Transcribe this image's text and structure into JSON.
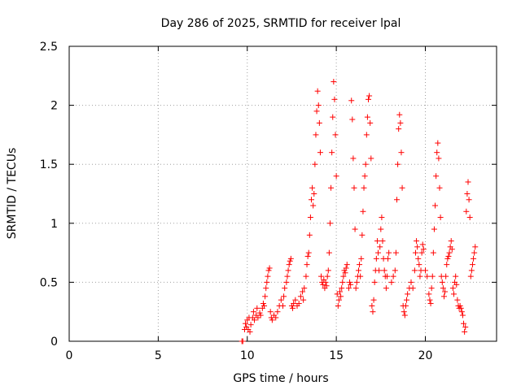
{
  "chart_data": {
    "type": "scatter",
    "title": "Day 286 of 2025, SRMTID for receiver lpal",
    "xlabel": "GPS time / hours",
    "ylabel": "SRMTID / TECUs",
    "xlim": [
      0,
      24
    ],
    "ylim": [
      0,
      2.5
    ],
    "xticks": [
      0,
      5,
      10,
      15,
      20
    ],
    "yticks": [
      0,
      0.5,
      1,
      1.5,
      2,
      2.5
    ],
    "xtick_labels": [
      "0",
      "5",
      "10",
      "15",
      "20"
    ],
    "ytick_labels": [
      "0",
      "0.5",
      "1",
      "1.5",
      "2",
      "2.5"
    ],
    "grid": true,
    "marker": "+",
    "color": "#ff0000",
    "series": [
      {
        "name": "SRMTID",
        "points": [
          [
            9.7,
            0.0
          ],
          [
            9.75,
            0.0
          ],
          [
            9.85,
            0.1
          ],
          [
            9.9,
            0.15
          ],
          [
            9.95,
            0.12
          ],
          [
            10.0,
            0.18
          ],
          [
            10.05,
            0.1
          ],
          [
            10.1,
            0.2
          ],
          [
            10.15,
            0.08
          ],
          [
            10.2,
            0.14
          ],
          [
            10.3,
            0.2
          ],
          [
            10.35,
            0.25
          ],
          [
            10.4,
            0.18
          ],
          [
            10.5,
            0.22
          ],
          [
            10.55,
            0.28
          ],
          [
            10.6,
            0.2
          ],
          [
            10.7,
            0.24
          ],
          [
            10.75,
            0.22
          ],
          [
            10.85,
            0.28
          ],
          [
            10.9,
            0.32
          ],
          [
            10.95,
            0.3
          ],
          [
            11.0,
            0.38
          ],
          [
            11.05,
            0.45
          ],
          [
            11.1,
            0.5
          ],
          [
            11.15,
            0.55
          ],
          [
            11.2,
            0.6
          ],
          [
            11.25,
            0.62
          ],
          [
            11.3,
            0.25
          ],
          [
            11.35,
            0.2
          ],
          [
            11.4,
            0.18
          ],
          [
            11.5,
            0.22
          ],
          [
            11.6,
            0.2
          ],
          [
            11.7,
            0.25
          ],
          [
            11.8,
            0.3
          ],
          [
            11.9,
            0.35
          ],
          [
            12.0,
            0.3
          ],
          [
            12.05,
            0.38
          ],
          [
            12.1,
            0.45
          ],
          [
            12.2,
            0.5
          ],
          [
            12.25,
            0.55
          ],
          [
            12.3,
            0.6
          ],
          [
            12.35,
            0.65
          ],
          [
            12.4,
            0.68
          ],
          [
            12.45,
            0.7
          ],
          [
            12.5,
            0.3
          ],
          [
            12.55,
            0.28
          ],
          [
            12.6,
            0.32
          ],
          [
            12.7,
            0.35
          ],
          [
            12.8,
            0.3
          ],
          [
            12.9,
            0.32
          ],
          [
            13.0,
            0.38
          ],
          [
            13.1,
            0.42
          ],
          [
            13.15,
            0.35
          ],
          [
            13.2,
            0.45
          ],
          [
            13.3,
            0.55
          ],
          [
            13.35,
            0.65
          ],
          [
            13.4,
            0.72
          ],
          [
            13.45,
            0.75
          ],
          [
            13.5,
            0.9
          ],
          [
            13.55,
            1.05
          ],
          [
            13.6,
            1.2
          ],
          [
            13.65,
            1.3
          ],
          [
            13.7,
            1.15
          ],
          [
            13.75,
            1.25
          ],
          [
            13.8,
            1.5
          ],
          [
            13.85,
            1.75
          ],
          [
            13.9,
            1.95
          ],
          [
            13.95,
            2.12
          ],
          [
            14.0,
            2.0
          ],
          [
            14.05,
            1.85
          ],
          [
            14.1,
            1.6
          ],
          [
            14.15,
            0.55
          ],
          [
            14.2,
            0.5
          ],
          [
            14.25,
            0.48
          ],
          [
            14.3,
            0.52
          ],
          [
            14.35,
            0.45
          ],
          [
            14.4,
            0.5
          ],
          [
            14.45,
            0.47
          ],
          [
            14.5,
            0.55
          ],
          [
            14.55,
            0.6
          ],
          [
            14.6,
            0.75
          ],
          [
            14.65,
            1.0
          ],
          [
            14.7,
            1.3
          ],
          [
            14.75,
            1.6
          ],
          [
            14.8,
            1.9
          ],
          [
            14.85,
            2.2
          ],
          [
            14.9,
            2.05
          ],
          [
            14.95,
            1.75
          ],
          [
            15.0,
            1.4
          ],
          [
            15.05,
            0.4
          ],
          [
            15.1,
            0.3
          ],
          [
            15.15,
            0.35
          ],
          [
            15.2,
            0.42
          ],
          [
            15.25,
            0.38
          ],
          [
            15.3,
            0.45
          ],
          [
            15.35,
            0.5
          ],
          [
            15.4,
            0.55
          ],
          [
            15.45,
            0.6
          ],
          [
            15.5,
            0.58
          ],
          [
            15.55,
            0.62
          ],
          [
            15.6,
            0.65
          ],
          [
            15.7,
            0.45
          ],
          [
            15.75,
            0.5
          ],
          [
            15.8,
            0.48
          ],
          [
            15.85,
            2.04
          ],
          [
            15.9,
            1.88
          ],
          [
            15.95,
            1.55
          ],
          [
            16.0,
            1.3
          ],
          [
            16.05,
            0.95
          ],
          [
            16.1,
            0.45
          ],
          [
            16.15,
            0.5
          ],
          [
            16.2,
            0.55
          ],
          [
            16.25,
            0.6
          ],
          [
            16.3,
            0.65
          ],
          [
            16.35,
            0.55
          ],
          [
            16.4,
            0.7
          ],
          [
            16.45,
            0.9
          ],
          [
            16.5,
            1.1
          ],
          [
            16.55,
            1.3
          ],
          [
            16.6,
            1.4
          ],
          [
            16.65,
            1.5
          ],
          [
            16.7,
            1.75
          ],
          [
            16.75,
            1.9
          ],
          [
            16.8,
            2.05
          ],
          [
            16.85,
            2.08
          ],
          [
            16.9,
            1.85
          ],
          [
            16.95,
            1.55
          ],
          [
            17.0,
            0.3
          ],
          [
            17.05,
            0.25
          ],
          [
            17.1,
            0.35
          ],
          [
            17.15,
            0.5
          ],
          [
            17.2,
            0.6
          ],
          [
            17.25,
            0.7
          ],
          [
            17.3,
            0.85
          ],
          [
            17.35,
            0.75
          ],
          [
            17.4,
            0.6
          ],
          [
            17.45,
            0.8
          ],
          [
            17.5,
            0.95
          ],
          [
            17.55,
            1.05
          ],
          [
            17.6,
            0.85
          ],
          [
            17.65,
            0.7
          ],
          [
            17.7,
            0.6
          ],
          [
            17.75,
            0.55
          ],
          [
            17.8,
            0.45
          ],
          [
            17.85,
            0.55
          ],
          [
            17.9,
            0.7
          ],
          [
            17.95,
            0.75
          ],
          [
            18.1,
            0.5
          ],
          [
            18.2,
            0.55
          ],
          [
            18.3,
            0.6
          ],
          [
            18.35,
            0.75
          ],
          [
            18.4,
            1.2
          ],
          [
            18.45,
            1.5
          ],
          [
            18.5,
            1.8
          ],
          [
            18.55,
            1.92
          ],
          [
            18.6,
            1.85
          ],
          [
            18.65,
            1.6
          ],
          [
            18.7,
            1.3
          ],
          [
            18.75,
            0.3
          ],
          [
            18.8,
            0.25
          ],
          [
            18.85,
            0.22
          ],
          [
            18.9,
            0.3
          ],
          [
            18.95,
            0.35
          ],
          [
            19.0,
            0.4
          ],
          [
            19.1,
            0.45
          ],
          [
            19.2,
            0.5
          ],
          [
            19.3,
            0.45
          ],
          [
            19.4,
            0.6
          ],
          [
            19.45,
            0.75
          ],
          [
            19.5,
            0.85
          ],
          [
            19.55,
            0.8
          ],
          [
            19.6,
            0.7
          ],
          [
            19.65,
            0.65
          ],
          [
            19.7,
            0.55
          ],
          [
            19.75,
            0.6
          ],
          [
            19.8,
            0.75
          ],
          [
            19.85,
            0.82
          ],
          [
            19.9,
            0.78
          ],
          [
            20.0,
            0.6
          ],
          [
            20.1,
            0.55
          ],
          [
            20.2,
            0.4
          ],
          [
            20.25,
            0.35
          ],
          [
            20.3,
            0.32
          ],
          [
            20.35,
            0.45
          ],
          [
            20.4,
            0.55
          ],
          [
            20.45,
            0.75
          ],
          [
            20.5,
            0.95
          ],
          [
            20.55,
            1.15
          ],
          [
            20.6,
            1.4
          ],
          [
            20.65,
            1.6
          ],
          [
            20.7,
            1.68
          ],
          [
            20.75,
            1.55
          ],
          [
            20.8,
            1.3
          ],
          [
            20.85,
            1.05
          ],
          [
            20.9,
            0.55
          ],
          [
            20.95,
            0.5
          ],
          [
            21.0,
            0.45
          ],
          [
            21.05,
            0.38
          ],
          [
            21.1,
            0.42
          ],
          [
            21.15,
            0.55
          ],
          [
            21.2,
            0.65
          ],
          [
            21.25,
            0.7
          ],
          [
            21.3,
            0.72
          ],
          [
            21.35,
            0.75
          ],
          [
            21.4,
            0.8
          ],
          [
            21.45,
            0.85
          ],
          [
            21.5,
            0.78
          ],
          [
            21.55,
            0.45
          ],
          [
            21.6,
            0.4
          ],
          [
            21.65,
            0.5
          ],
          [
            21.7,
            0.55
          ],
          [
            21.75,
            0.48
          ],
          [
            21.8,
            0.35
          ],
          [
            21.85,
            0.3
          ],
          [
            21.9,
            0.28
          ],
          [
            21.95,
            0.3
          ],
          [
            22.0,
            0.28
          ],
          [
            22.05,
            0.25
          ],
          [
            22.1,
            0.22
          ],
          [
            22.15,
            0.15
          ],
          [
            22.2,
            0.08
          ],
          [
            22.25,
            0.12
          ],
          [
            22.3,
            1.1
          ],
          [
            22.35,
            1.25
          ],
          [
            22.4,
            1.35
          ],
          [
            22.45,
            1.2
          ],
          [
            22.5,
            1.05
          ],
          [
            22.55,
            0.55
          ],
          [
            22.6,
            0.6
          ],
          [
            22.65,
            0.65
          ],
          [
            22.7,
            0.7
          ],
          [
            22.75,
            0.75
          ],
          [
            22.8,
            0.8
          ]
        ]
      }
    ]
  }
}
